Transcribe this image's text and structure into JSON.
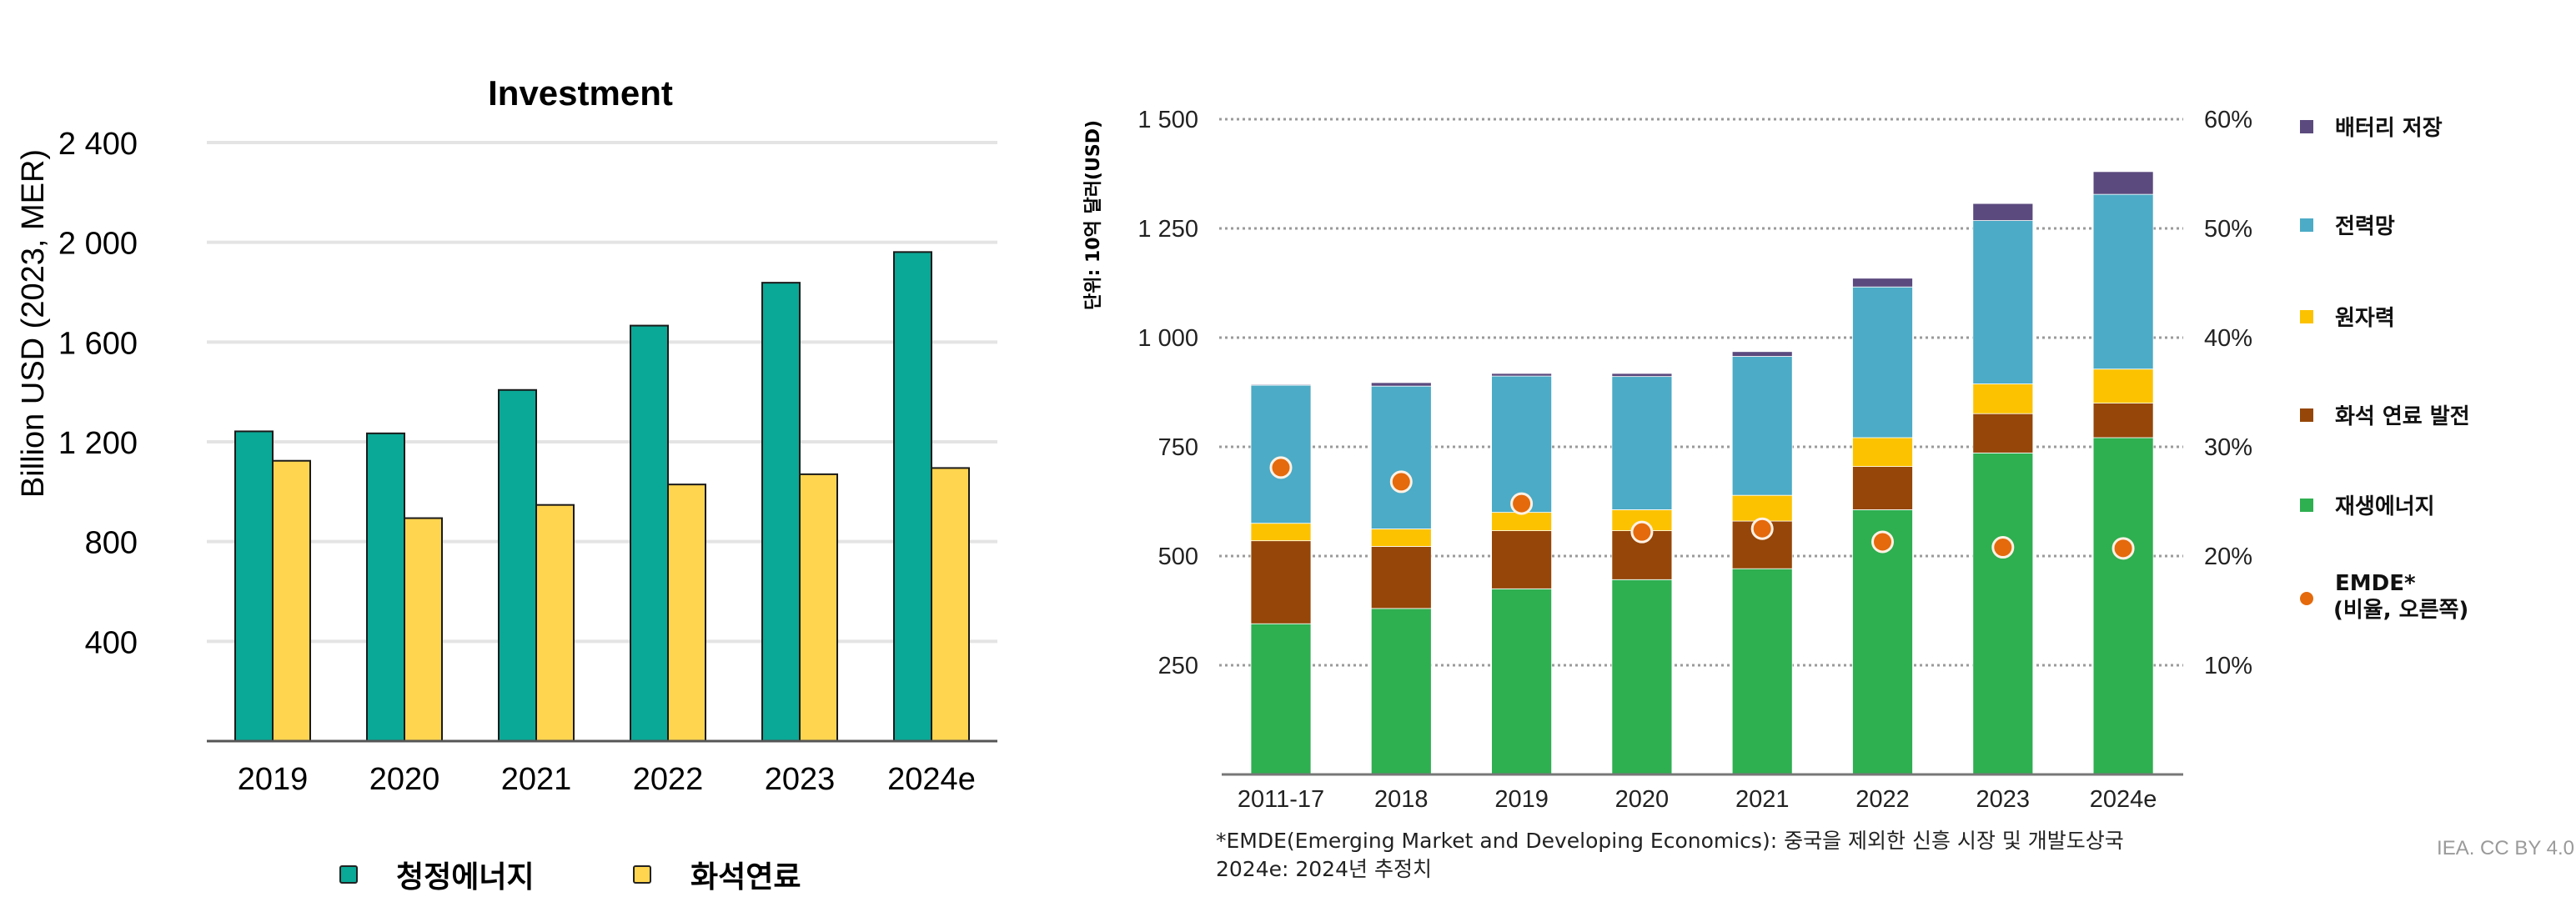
{
  "colors": {
    "clean": "#0aa896",
    "fossil": "#ffd54f",
    "battery": "#5b4a7e",
    "grid": "#4cabc6",
    "nuclear": "#fcc200",
    "fossil_power": "#954608",
    "renewables": "#2eaf50",
    "emde": "#e46a0c",
    "source_text": "#9a9a9a"
  },
  "chart_data": [
    {
      "type": "bar",
      "title": "Investment",
      "xlabel": "",
      "ylabel": "Billion USD (2023, MER)",
      "categories": [
        "2019",
        "2020",
        "2021",
        "2022",
        "2023",
        "2024e"
      ],
      "series": [
        {
          "name": "청정에너지",
          "values": [
            1242,
            1234,
            1408,
            1666,
            1838,
            1961
          ]
        },
        {
          "name": "화석연료",
          "values": [
            1124,
            894,
            947,
            1029,
            1070,
            1095
          ]
        }
      ],
      "ylim": [
        0,
        2400
      ],
      "yticks": [
        400,
        800,
        1200,
        1600,
        2000,
        2400
      ],
      "ytick_labels": [
        "400",
        "800",
        "1 200",
        "1 600",
        "2 000",
        "2 400"
      ],
      "grid": true,
      "legend": "bottom"
    },
    {
      "type": "bar",
      "stacked": true,
      "title": "",
      "ylabel": "단위: 10억 달러(USD)",
      "categories": [
        "2011-17",
        "2018",
        "2019",
        "2020",
        "2021",
        "2022",
        "2023",
        "2024e"
      ],
      "series": [
        {
          "name": "재생에너지",
          "values": [
            345,
            380,
            425,
            446,
            471,
            606,
            736,
            771
          ]
        },
        {
          "name": "화석 연료 발전",
          "values": [
            190,
            142,
            133,
            112,
            109,
            99,
            90,
            79
          ]
        },
        {
          "name": "원자력",
          "values": [
            40,
            40,
            42,
            48,
            59,
            66,
            68,
            78
          ]
        },
        {
          "name": "전력망",
          "values": [
            316,
            327,
            312,
            305,
            318,
            345,
            374,
            400
          ]
        },
        {
          "name": "배터리 저장",
          "values": [
            2,
            8,
            6,
            7,
            11,
            20,
            39,
            52
          ]
        }
      ],
      "line_series": {
        "name": "EMDE* (비율, 오른쪽)",
        "axis": "right",
        "unit": "%",
        "values": [
          28.1,
          26.8,
          24.8,
          22.2,
          22.5,
          21.3,
          20.8,
          20.7
        ]
      },
      "ylim": [
        0,
        1500
      ],
      "yticks": [
        250,
        500,
        750,
        1000,
        1250,
        1500
      ],
      "ytick_labels": [
        "250",
        "500",
        "750",
        "1 000",
        "1 250",
        "1 500"
      ],
      "y2lim": [
        0,
        60
      ],
      "y2ticks": [
        10,
        20,
        30,
        40,
        50,
        60
      ],
      "y2tick_labels": [
        "10%",
        "20%",
        "30%",
        "40%",
        "50%",
        "60%"
      ],
      "grid": true,
      "legend": "right",
      "legend_order": [
        "배터리 저장",
        "전력망",
        "원자력",
        "화석 연료 발전",
        "재생에너지",
        "EMDE*"
      ]
    }
  ],
  "left_legend": [
    {
      "label": "청정에너지",
      "color_key": "clean"
    },
    {
      "label": "화석연료",
      "color_key": "fossil"
    }
  ],
  "right_legend": [
    {
      "label": "배터리 저장",
      "color_key": "battery",
      "shape": "square"
    },
    {
      "label": "전력망",
      "color_key": "grid",
      "shape": "square"
    },
    {
      "label": "원자력",
      "color_key": "nuclear",
      "shape": "square"
    },
    {
      "label": "화석 연료 발전",
      "color_key": "fossil_power",
      "shape": "square"
    },
    {
      "label": "재생에너지",
      "color_key": "renewables",
      "shape": "square"
    },
    {
      "label": "EMDE*",
      "label2": "(비율, 오른쪽)",
      "color_key": "emde",
      "shape": "circle"
    }
  ],
  "footnote": {
    "line1": "*EMDE(Emerging Market and Developing Economics): 중국을 제외한 신흥 시장 및 개발도상국",
    "line2": "2024e: 2024년 추정치"
  },
  "source": "IEA. CC BY 4.0"
}
